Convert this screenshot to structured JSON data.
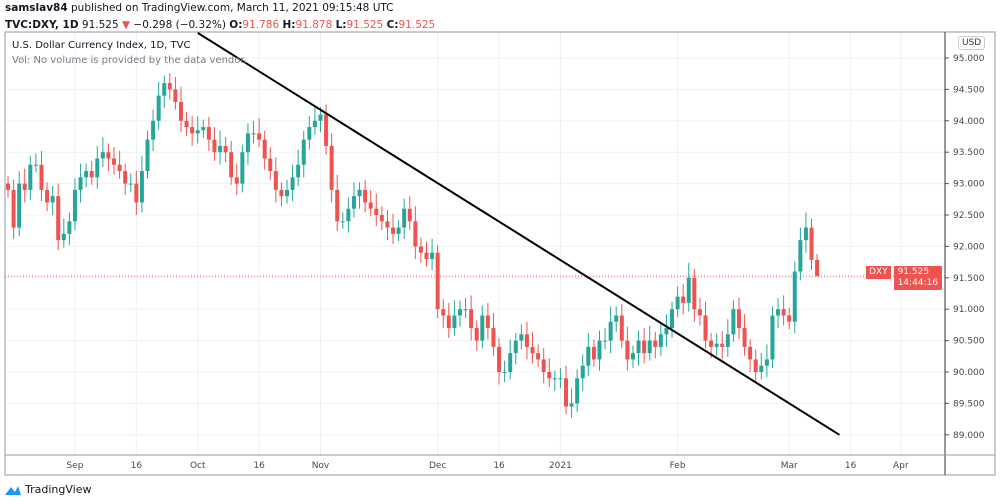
{
  "header": {
    "author": "samslav84",
    "published": "published on TradingView.com, March 11, 2021 09:15:48 UTC",
    "symbol": "TVC:DXY, 1D",
    "last": "91.525",
    "change": "−0.298 (−0.32%)",
    "o_label": "O:",
    "o": "91.786",
    "h_label": "H:",
    "h": "91.878",
    "l_label": "L:",
    "l": "91.525",
    "c_label": "C:",
    "c": "91.525"
  },
  "legend": {
    "title": "U.S. Dollar Currency Index, 1D, TVC",
    "volume_note": "Vol: No volume is provided by the data vendor."
  },
  "price_axis": {
    "currency": "USD"
  },
  "price_tag": {
    "symbol": "DXY",
    "price": "91.525",
    "countdown": "14:44:16"
  },
  "footer": {
    "brand": "TradingView"
  },
  "colors": {
    "up": "#26a69a",
    "down": "#ef5350",
    "trendline": "#000000",
    "grid": "#eef0f3"
  },
  "chart_data": {
    "type": "candlestick",
    "ylim": [
      88.6,
      95.4
    ],
    "y_ticks": [
      "95.000",
      "94.500",
      "94.000",
      "93.500",
      "93.000",
      "92.500",
      "92.000",
      "91.500",
      "91.000",
      "90.500",
      "90.000",
      "89.500",
      "89.000"
    ],
    "x_ticks": [
      {
        "label": "Sep",
        "index": 12
      },
      {
        "label": "16",
        "index": 23
      },
      {
        "label": "Oct",
        "index": 34
      },
      {
        "label": "16",
        "index": 45
      },
      {
        "label": "Nov",
        "index": 56
      },
      {
        "label": "Dec",
        "index": 77
      },
      {
        "label": "16",
        "index": 88
      },
      {
        "label": "2021",
        "index": 99
      },
      {
        "label": "Feb",
        "index": 120
      },
      {
        "label": "Mar",
        "index": 140
      },
      {
        "label": "16",
        "index": 151
      },
      {
        "label": "Apr",
        "index": 160
      }
    ],
    "last_candle": {
      "open": 91.786,
      "high": 91.878,
      "low": 91.525,
      "close": 91.525
    },
    "closes": [
      92.9,
      92.3,
      93.0,
      92.9,
      93.3,
      93.3,
      92.9,
      92.7,
      92.8,
      92.1,
      92.2,
      92.4,
      92.9,
      93.1,
      93.2,
      93.1,
      93.4,
      93.5,
      93.4,
      93.3,
      93.2,
      93.0,
      93.0,
      92.7,
      93.2,
      93.7,
      94.0,
      94.4,
      94.6,
      94.5,
      94.3,
      94.0,
      93.9,
      93.8,
      93.85,
      93.9,
      93.7,
      93.5,
      93.6,
      93.5,
      93.1,
      93.0,
      93.5,
      93.8,
      93.8,
      93.7,
      93.4,
      93.2,
      92.9,
      92.8,
      92.9,
      93.1,
      93.3,
      93.7,
      93.9,
      94.0,
      94.1,
      93.6,
      92.9,
      92.4,
      92.4,
      92.6,
      92.8,
      92.9,
      92.7,
      92.6,
      92.5,
      92.4,
      92.3,
      92.2,
      92.3,
      92.6,
      92.4,
      92.0,
      91.9,
      91.8,
      91.9,
      91.0,
      90.9,
      90.7,
      90.9,
      91.0,
      91.0,
      90.7,
      90.5,
      90.9,
      90.7,
      90.4,
      90.0,
      90.0,
      90.3,
      90.5,
      90.6,
      90.4,
      90.3,
      90.2,
      90.0,
      89.9,
      89.9,
      89.9,
      89.45,
      89.5,
      89.9,
      90.1,
      90.4,
      90.2,
      90.5,
      90.5,
      90.8,
      90.9,
      90.5,
      90.2,
      90.3,
      90.5,
      90.3,
      90.5,
      90.4,
      90.6,
      90.7,
      91.0,
      91.2,
      91.1,
      91.5,
      91.0,
      90.9,
      90.5,
      90.4,
      90.45,
      90.4,
      90.6,
      91.0,
      90.7,
      90.4,
      90.2,
      90.0,
      90.1,
      90.2,
      90.9,
      91.0,
      90.9,
      90.8,
      91.6,
      92.1,
      92.3,
      91.786,
      91.525
    ],
    "trendline": {
      "start": {
        "index": 34,
        "price": 95.4
      },
      "end": {
        "index": 149,
        "price": 89.0
      }
    },
    "last_price_line": 91.525
  }
}
